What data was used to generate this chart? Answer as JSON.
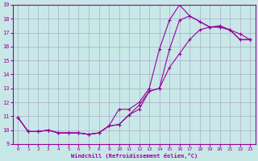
{
  "xlabel": "Windchill (Refroidissement éolien,°C)",
  "background_color": "#c8e8e8",
  "line_color": "#990099",
  "grid_color": "#aaaacc",
  "xlim": [
    -0.5,
    23.5
  ],
  "ylim": [
    9,
    19
  ],
  "xticks": [
    0,
    1,
    2,
    3,
    4,
    5,
    6,
    7,
    8,
    9,
    10,
    11,
    12,
    13,
    14,
    15,
    16,
    17,
    18,
    19,
    20,
    21,
    22,
    23
  ],
  "yticks": [
    9,
    10,
    11,
    12,
    13,
    14,
    15,
    16,
    17,
    18,
    19
  ],
  "series1_x": [
    0,
    1,
    2,
    3,
    4,
    5,
    6,
    7,
    8,
    9,
    10,
    11,
    12,
    13,
    14,
    15,
    16,
    17,
    18,
    19,
    20,
    21,
    22,
    23
  ],
  "series1_y": [
    10.9,
    9.9,
    9.9,
    10.0,
    9.8,
    9.8,
    9.8,
    9.7,
    9.8,
    10.3,
    11.5,
    11.5,
    12.0,
    13.0,
    15.8,
    17.9,
    19.0,
    18.2,
    17.8,
    17.4,
    17.4,
    17.2,
    16.5,
    16.5
  ],
  "series2_x": [
    0,
    1,
    2,
    3,
    4,
    5,
    6,
    7,
    8,
    9,
    10,
    11,
    12,
    13,
    14,
    15,
    16,
    17,
    18,
    19,
    20,
    21,
    22,
    23
  ],
  "series2_y": [
    10.9,
    9.9,
    9.9,
    10.0,
    9.8,
    9.8,
    9.8,
    9.7,
    9.8,
    10.3,
    10.4,
    11.1,
    11.5,
    12.8,
    13.0,
    15.8,
    17.9,
    18.2,
    17.8,
    17.4,
    17.4,
    17.2,
    16.5,
    16.5
  ],
  "series3_x": [
    0,
    1,
    2,
    3,
    4,
    5,
    6,
    7,
    8,
    9,
    10,
    11,
    12,
    13,
    14,
    15,
    16,
    17,
    18,
    19,
    20,
    21,
    22,
    23
  ],
  "series3_y": [
    10.9,
    9.9,
    9.9,
    10.0,
    9.8,
    9.8,
    9.8,
    9.7,
    9.8,
    10.3,
    10.4,
    11.1,
    11.8,
    12.8,
    13.0,
    14.5,
    15.5,
    16.5,
    17.2,
    17.4,
    17.5,
    17.2,
    16.9,
    16.5
  ]
}
